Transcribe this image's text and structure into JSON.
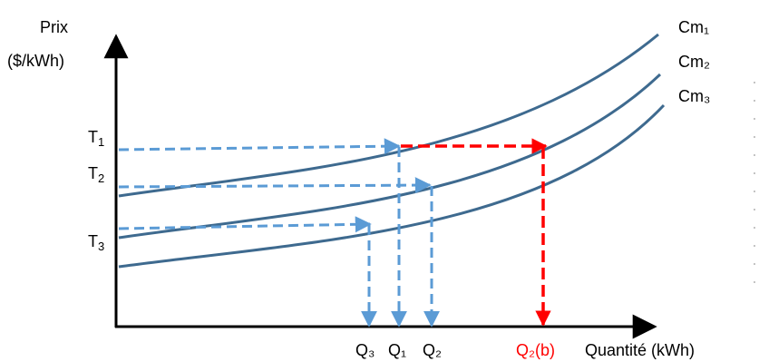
{
  "axis": {
    "y_label_line1": "Prix",
    "y_label_line2": "($/kWh)",
    "x_label": "Quantité (kWh)"
  },
  "curves": [
    {
      "base": "Cm",
      "sub": "₁"
    },
    {
      "base": "Cm",
      "sub": "₂"
    },
    {
      "base": "Cm",
      "sub": "₃"
    }
  ],
  "prices": [
    {
      "base": "T",
      "sub": "1"
    },
    {
      "base": "T",
      "sub": "2"
    },
    {
      "base": "T",
      "sub": "3"
    }
  ],
  "quantities": [
    {
      "base": "Q",
      "sub": "₃"
    },
    {
      "base": "Q",
      "sub": "₁"
    },
    {
      "base": "Q",
      "sub": "₂"
    },
    {
      "base": "Q",
      "sub": "₂",
      "suffix": "(b)"
    }
  ],
  "colors": {
    "curve": "#3e6a8f",
    "guide_blue": "#5b9bd5",
    "guide_red": "#ff0000",
    "axis": "#000000"
  }
}
